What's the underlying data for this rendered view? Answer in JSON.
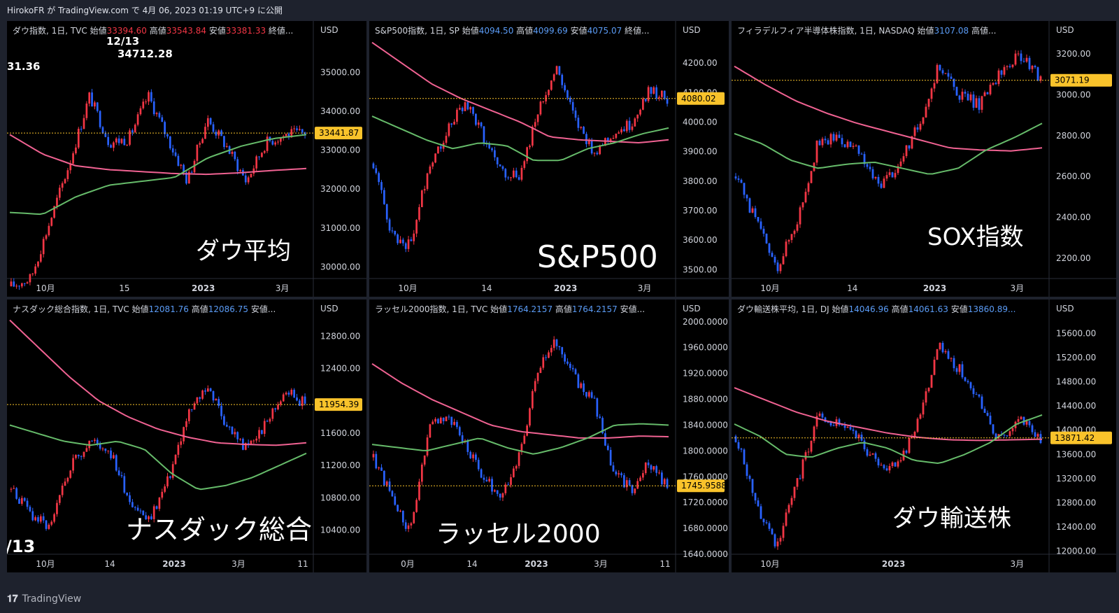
{
  "header": {
    "publish_text": "HirokoFR が TradingView.com で 4月 06, 2023 01:19 UTC+9 に公開"
  },
  "footer": {
    "logo_icon": "tradingview-logo-icon",
    "brand": "TradingView"
  },
  "colors": {
    "background": "#000000",
    "frame": "#1e222d",
    "up": "#f23645",
    "down": "#2962ff",
    "ma_long": "#f06292",
    "ma_short": "#66bb6a",
    "price_tag": "#f9c32b",
    "price_line": "#f9c32b",
    "text": "#d1d4dc",
    "blue_value": "#5b9cf6",
    "red_value": "#f23645"
  },
  "chart_data": [
    {
      "type": "candlestick",
      "legend": {
        "title": "ダウ指数, 1日, TVC",
        "open_label": "始値",
        "open": "33394.60",
        "high_label": "高値",
        "high": "33543.84",
        "low_label": "安値",
        "low": "33381.33",
        "close_label": "終値...",
        "value_color": "red"
      },
      "big_label": "ダウ平均",
      "annotations": [
        "12/13",
        "34712.28",
        "31.36"
      ],
      "axis_unit": "USD",
      "y_ticks": [
        "35000.00",
        "34000.00",
        "33000.00",
        "32000.00",
        "31000.00",
        "30000.00"
      ],
      "ylim": [
        29700,
        36000
      ],
      "x_ticks": [
        "10月",
        "15",
        "2023",
        "3月"
      ],
      "last_price": "33441.87",
      "last_value": 33441.87,
      "series": [
        {
          "name": "price",
          "values": [
            29500,
            29700,
            31200,
            32700,
            34400,
            33200,
            33300,
            34400,
            33300,
            32200,
            33800,
            33100,
            32200,
            33200,
            33400,
            33441.87
          ]
        },
        {
          "name": "ma_short",
          "values": [
            31400,
            31350,
            31800,
            32100,
            32200,
            32300,
            32800,
            33100,
            33300,
            33400
          ]
        },
        {
          "name": "ma_long",
          "values": [
            33400,
            32900,
            32600,
            32500,
            32450,
            32400,
            32380,
            32420,
            32480,
            32530
          ]
        }
      ]
    },
    {
      "type": "candlestick",
      "legend": {
        "title": "S&P500指数, 1日, SP",
        "open_label": "始値",
        "open": "4094.50",
        "high_label": "高値",
        "high": "4099.69",
        "low_label": "安値",
        "low": "4075.07",
        "close_label": "終値...",
        "value_color": "blue"
      },
      "big_label": "S&P500",
      "annotations": [],
      "axis_unit": "USD",
      "y_ticks": [
        "4200.00",
        "4100.00",
        "4000.00",
        "3900.00",
        "3800.00",
        "3700.00",
        "3600.00",
        "3500.00"
      ],
      "ylim": [
        3470,
        4300
      ],
      "x_ticks": [
        "10月",
        "14",
        "2023",
        "3月"
      ],
      "last_price": "4080.02",
      "last_value": 4080.02,
      "series": [
        {
          "name": "price",
          "values": [
            3860,
            3620,
            3580,
            3850,
            3970,
            4070,
            3950,
            3830,
            3820,
            4050,
            4180,
            4000,
            3900,
            3960,
            3990,
            4110,
            4080.02
          ]
        },
        {
          "name": "ma_short",
          "values": [
            4020,
            3980,
            3940,
            3910,
            3930,
            3920,
            3870,
            3870,
            3910,
            3930,
            3960,
            3980
          ]
        },
        {
          "name": "ma_long",
          "values": [
            4270,
            4200,
            4130,
            4080,
            4040,
            4000,
            3950,
            3940,
            3935,
            3930,
            3940
          ]
        }
      ]
    },
    {
      "type": "candlestick",
      "legend": {
        "title": "フィラデルフィア半導体株指数, 1日, NASDAQ",
        "open_label": "始値",
        "open": "3107.08",
        "high_label": "高値...",
        "high": "",
        "low_label": "",
        "low": "",
        "close_label": "",
        "value_color": "blue"
      },
      "big_label": "SOX指数",
      "annotations": [],
      "axis_unit": "USD",
      "y_ticks": [
        "3200.00",
        "3000.00",
        "2800.00",
        "2600.00",
        "2400.00",
        "2200.00"
      ],
      "ylim": [
        2100,
        3300
      ],
      "x_ticks": [
        "10月",
        "14",
        "2023",
        "3月"
      ],
      "last_price": "3071.19",
      "last_value": 3071.19,
      "series": [
        {
          "name": "price",
          "values": [
            2600,
            2380,
            2150,
            2380,
            2750,
            2800,
            2720,
            2560,
            2650,
            2850,
            3150,
            3000,
            2950,
            3100,
            3200,
            3071.19
          ]
        },
        {
          "name": "ma_short",
          "values": [
            2810,
            2760,
            2680,
            2640,
            2660,
            2670,
            2640,
            2610,
            2640,
            2730,
            2790,
            2860
          ]
        },
        {
          "name": "ma_long",
          "values": [
            3140,
            3050,
            2970,
            2910,
            2860,
            2820,
            2780,
            2740,
            2730,
            2725,
            2740
          ]
        }
      ]
    },
    {
      "type": "candlestick",
      "legend": {
        "title": "ナスダック総合指数, 1日, TVC",
        "open_label": "始値",
        "open": "12081.76",
        "high_label": "高値",
        "high": "12086.75",
        "low_label": "安値...",
        "low": "",
        "close_label": "",
        "value_color": "blue"
      },
      "big_label": "ナスダック総合",
      "annotations": [
        "/13"
      ],
      "axis_unit": "USD",
      "y_ticks": [
        "12800.00",
        "12400.00",
        "11600.00",
        "11200.00",
        "10800.00",
        "10400.00"
      ],
      "ylim": [
        10100,
        13100
      ],
      "x_ticks": [
        "10月",
        "14",
        "2023",
        "3月",
        "11"
      ],
      "last_price": "11954.39",
      "last_value": 11954.39,
      "series": [
        {
          "name": "price",
          "values": [
            10900,
            10600,
            10400,
            11200,
            11500,
            11400,
            10800,
            10500,
            11000,
            11800,
            12200,
            11700,
            11400,
            11700,
            12150,
            11954.39
          ]
        },
        {
          "name": "ma_short",
          "values": [
            11700,
            11600,
            11500,
            11450,
            11500,
            11400,
            11100,
            10900,
            10950,
            11050,
            11200,
            11350
          ]
        },
        {
          "name": "ma_long",
          "values": [
            13000,
            12650,
            12300,
            12000,
            11800,
            11650,
            11550,
            11480,
            11460,
            11450,
            11480
          ]
        }
      ]
    },
    {
      "type": "candlestick",
      "legend": {
        "title": "ラッセル2000指数, 1日, TVC",
        "open_label": "始値",
        "open": "1764.2157",
        "high_label": "高値",
        "high": "1764.2157",
        "low_label": "安値...",
        "low": "",
        "close_label": "",
        "value_color": "blue"
      },
      "big_label": "ラッセル2000",
      "annotations": [],
      "axis_unit": "USD",
      "y_ticks": [
        "2000.0000",
        "1960.0000",
        "1920.0000",
        "1880.0000",
        "1840.0000",
        "1800.0000",
        "1760.0000",
        "1720.0000",
        "1680.0000",
        "1640.0000"
      ],
      "ylim": [
        1640,
        2015
      ],
      "x_ticks": [
        "0月",
        "14",
        "2023",
        "3月",
        "11"
      ],
      "last_price": "1745.9588",
      "last_value": 1745.9588,
      "series": [
        {
          "name": "price",
          "values": [
            1790,
            1730,
            1670,
            1830,
            1860,
            1810,
            1760,
            1730,
            1800,
            1930,
            1970,
            1910,
            1880,
            1770,
            1740,
            1780,
            1745.9588
          ]
        },
        {
          "name": "ma_short",
          "values": [
            1810,
            1805,
            1800,
            1810,
            1820,
            1805,
            1795,
            1805,
            1820,
            1840,
            1842,
            1840
          ]
        },
        {
          "name": "ma_long",
          "values": [
            1935,
            1905,
            1880,
            1860,
            1840,
            1830,
            1825,
            1820,
            1820,
            1823,
            1822
          ]
        }
      ]
    },
    {
      "type": "candlestick",
      "legend": {
        "title": "ダウ輸送株平均, 1日, DJ",
        "open_label": "始値",
        "open": "14046.96",
        "high_label": "高値",
        "high": "14061.63",
        "low_label": "安値",
        "low": "13860.89...",
        "close_label": "",
        "value_color": "blue"
      },
      "big_label": "ダウ輸送株",
      "annotations": [],
      "axis_unit": "USD",
      "y_ticks": [
        "15600.00",
        "15200.00",
        "14800.00",
        "14400.00",
        "14000.00",
        "13600.00",
        "13200.00",
        "12800.00",
        "12400.00",
        "12000.00"
      ],
      "ylim": [
        11950,
        15950
      ],
      "x_ticks": [
        "10月",
        "2023",
        "3月"
      ],
      "last_price": "13871.42",
      "last_value": 13871.42,
      "series": [
        {
          "name": "price",
          "values": [
            13900,
            12800,
            12100,
            13100,
            14200,
            14100,
            13900,
            13400,
            13400,
            14200,
            15400,
            15000,
            14500,
            13800,
            14200,
            13871.42
          ]
        },
        {
          "name": "ma_short",
          "values": [
            14100,
            13900,
            13600,
            13550,
            13700,
            13800,
            13700,
            13500,
            13450,
            13600,
            13800,
            14100,
            14250
          ]
        },
        {
          "name": "ma_long",
          "values": [
            14700,
            14500,
            14300,
            14150,
            14050,
            13950,
            13880,
            13840,
            13830,
            13840,
            13850
          ]
        }
      ]
    }
  ]
}
